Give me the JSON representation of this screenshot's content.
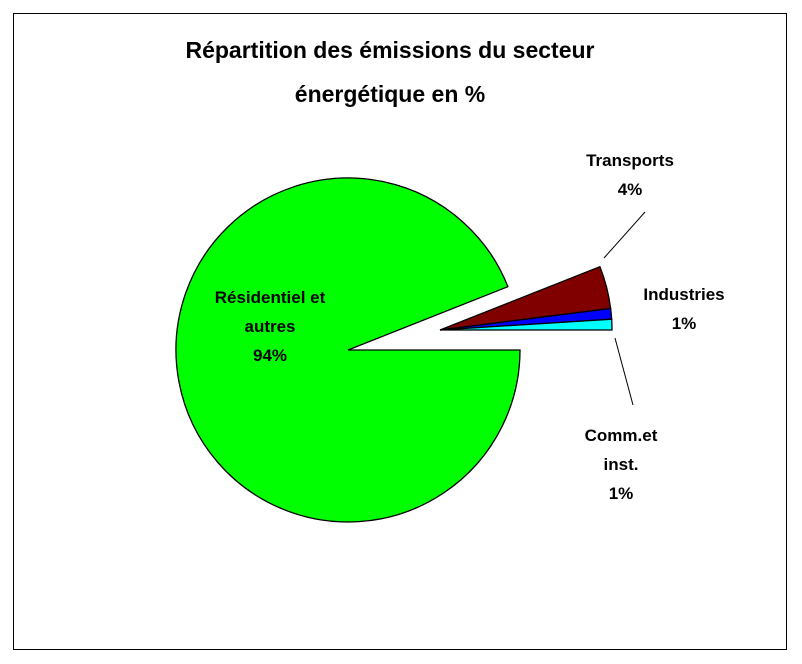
{
  "chart_data": {
    "type": "pie",
    "title": "Répartition des émissions du secteur énergétique en %",
    "categories": [
      "Résidentiel et autres",
      "Transports",
      "Industries",
      "Comm.et inst."
    ],
    "values": [
      94,
      4,
      1,
      1
    ],
    "value_labels": [
      "94%",
      "4%",
      "1%",
      "1%"
    ],
    "colors": [
      "#00ff00",
      "#800000",
      "#0000ff",
      "#00ffff"
    ]
  }
}
